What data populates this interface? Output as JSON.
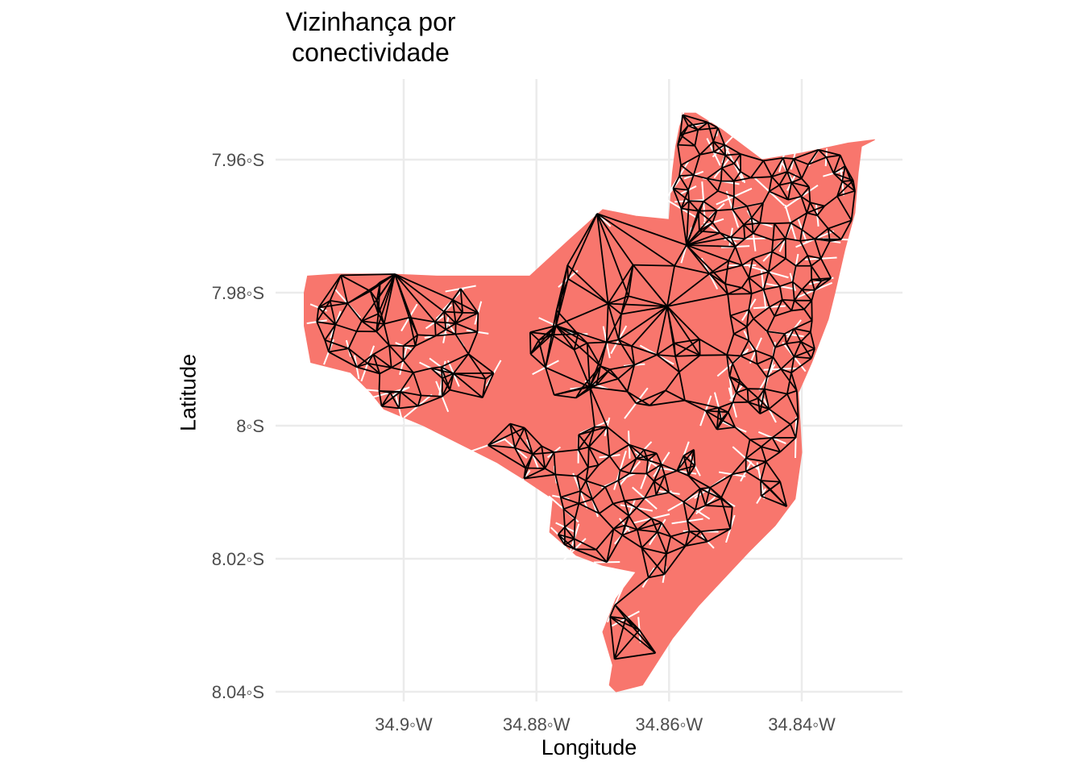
{
  "chart_data": {
    "type": "map",
    "title": "Vizinhança por\nconectividade",
    "xlabel": "Longitude",
    "ylabel": "Latitude",
    "x_ticks": [
      {
        "value": -34.9,
        "label": "34.9◦W"
      },
      {
        "value": -34.88,
        "label": "34.88◦W"
      },
      {
        "value": -34.86,
        "label": "34.86◦W"
      },
      {
        "value": -34.84,
        "label": "34.84◦W"
      }
    ],
    "y_ticks": [
      {
        "value": -7.96,
        "label": "7.96◦S"
      },
      {
        "value": -7.98,
        "label": "7.98◦S"
      },
      {
        "value": -8.0,
        "label": "8◦S"
      },
      {
        "value": -8.02,
        "label": "8.02◦S"
      },
      {
        "value": -8.04,
        "label": "8.04◦S"
      }
    ],
    "xlim": [
      -34.919,
      -34.845
    ],
    "ylim": [
      -8.043,
      -7.948
    ],
    "grid": true,
    "colors": {
      "fill": "#F8766D",
      "border": "#FFFFFF",
      "edges": "#000000",
      "grid": "#EBEBEB",
      "tick_text": "#4D4D4D"
    },
    "region_outline": [
      [
        -34.868,
        -8.04
      ],
      [
        -34.864,
        -8.039
      ],
      [
        -34.8595,
        -8.032
      ],
      [
        -34.8555,
        -8.027
      ],
      [
        -34.848,
        -8.019
      ],
      [
        -34.844,
        -8.015
      ],
      [
        -34.841,
        -8.011
      ],
      [
        -34.84,
        -8.004
      ],
      [
        -34.8405,
        -7.995
      ],
      [
        -34.8385,
        -7.9905
      ],
      [
        -34.836,
        -7.984
      ],
      [
        -34.835,
        -7.98
      ],
      [
        -34.8335,
        -7.9735
      ],
      [
        -34.832,
        -7.968
      ],
      [
        -34.8315,
        -7.962
      ],
      [
        -34.831,
        -7.958
      ],
      [
        -34.829,
        -7.957
      ],
      [
        -34.833,
        -7.9575
      ],
      [
        -34.84,
        -7.959
      ],
      [
        -34.846,
        -7.96
      ],
      [
        -34.852,
        -7.9555
      ],
      [
        -34.856,
        -7.953
      ],
      [
        -34.858,
        -7.953
      ],
      [
        -34.859,
        -7.958
      ],
      [
        -34.8595,
        -7.962
      ],
      [
        -34.86,
        -7.969
      ],
      [
        -34.865,
        -7.9685
      ],
      [
        -34.87,
        -7.9675
      ],
      [
        -34.875,
        -7.972
      ],
      [
        -34.881,
        -7.9775
      ],
      [
        -34.888,
        -7.9775
      ],
      [
        -34.895,
        -7.9775
      ],
      [
        -34.902,
        -7.9772
      ],
      [
        -34.91,
        -7.9772
      ],
      [
        -34.9145,
        -7.9775
      ],
      [
        -34.915,
        -7.98
      ],
      [
        -34.915,
        -7.985
      ],
      [
        -34.914,
        -7.9905
      ],
      [
        -34.908,
        -7.992
      ],
      [
        -34.905,
        -7.995
      ],
      [
        -34.903,
        -7.9975
      ],
      [
        -34.897,
        -8.0
      ],
      [
        -34.89,
        -8.0035
      ],
      [
        -34.886,
        -8.0055
      ],
      [
        -34.882,
        -8.008
      ],
      [
        -34.8775,
        -8.011
      ],
      [
        -34.878,
        -8.016
      ],
      [
        -34.874,
        -8.0195
      ],
      [
        -34.87,
        -8.021
      ],
      [
        -34.865,
        -8.022
      ],
      [
        -34.868,
        -8.026
      ],
      [
        -34.87,
        -8.031
      ],
      [
        -34.8685,
        -8.036
      ],
      [
        -34.869,
        -8.039
      ]
    ],
    "edge_count": 1032
  }
}
